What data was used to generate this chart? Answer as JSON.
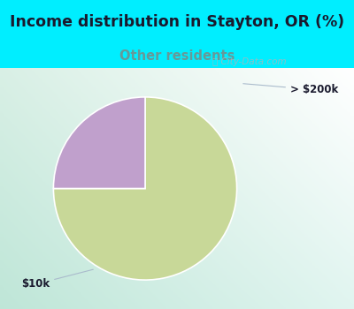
{
  "title": "Income distribution in Stayton, OR (%)",
  "subtitle": "Other residents",
  "title_color": "#1a1a2e",
  "subtitle_color": "#669999",
  "background_color": "#00eeff",
  "chart_bg_gradient_left": "#d6ede8",
  "chart_bg_gradient_right": "#e8f5ee",
  "slices": [
    {
      "label": "$10k",
      "value": 75,
      "color": "#c8d898"
    },
    {
      "label": "> $200k",
      "value": 25,
      "color": "#c0a0cc"
    }
  ],
  "watermark": "City-Data.com",
  "startangle": 90,
  "label_200k": "> $200k",
  "label_10k": "$10k",
  "label_color": "#1a1a2e",
  "annotation_line_color": "#aabbcc"
}
